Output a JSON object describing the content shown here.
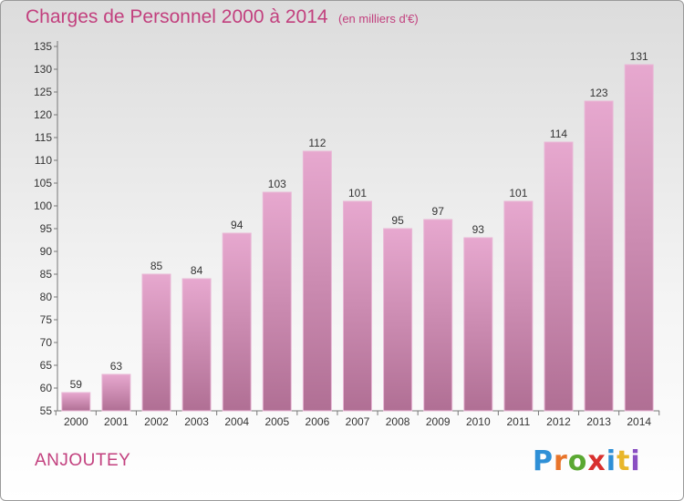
{
  "header": {
    "title": "Charges de Personnel 2000 à 2014",
    "unit": "(en milliers d'€)"
  },
  "footer": {
    "city": "ANJOUTEY",
    "brand_letters": [
      "P",
      "r",
      "o",
      "x",
      "i",
      "t",
      "i"
    ],
    "brand_colors": [
      "#2e8fd6",
      "#e8742a",
      "#5aa832",
      "#d8302e",
      "#2e8fd6",
      "#e8b62a",
      "#8a4fc2"
    ]
  },
  "chart_data": {
    "type": "bar",
    "title": "Charges de Personnel 2000 à 2014",
    "categories": [
      "2000",
      "2001",
      "2002",
      "2003",
      "2004",
      "2005",
      "2006",
      "2007",
      "2008",
      "2009",
      "2010",
      "2011",
      "2012",
      "2013",
      "2014"
    ],
    "values": [
      59,
      63,
      85,
      84,
      94,
      103,
      112,
      101,
      95,
      97,
      93,
      101,
      114,
      123,
      131
    ],
    "ylim": [
      55,
      135
    ],
    "yticks": [
      55,
      60,
      65,
      70,
      75,
      80,
      85,
      90,
      95,
      100,
      105,
      110,
      115,
      120,
      125,
      130,
      135
    ],
    "grid": false,
    "bar_color_top": "#e7a8cf",
    "bar_color_bottom": "#b06f94"
  }
}
